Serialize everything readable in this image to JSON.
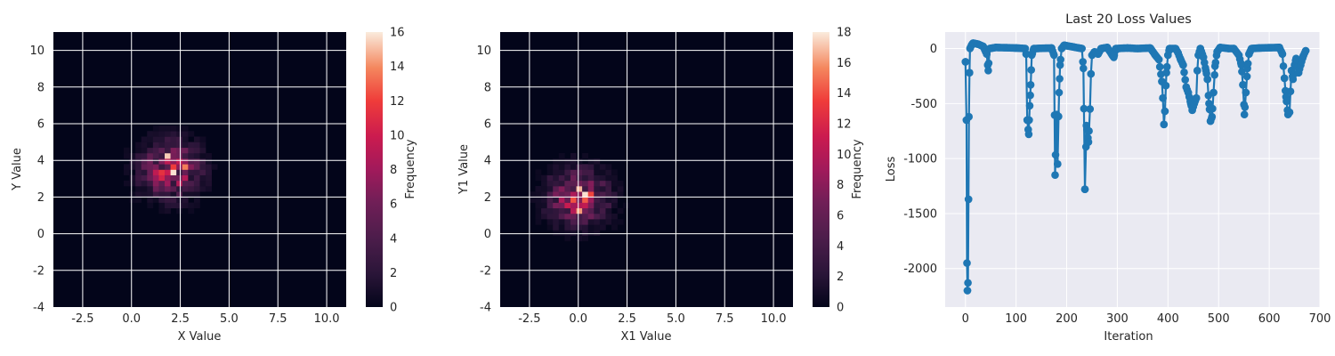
{
  "chart_data": [
    {
      "type": "heatmap",
      "title": "",
      "xlabel": "X Value",
      "ylabel": "Y Value",
      "xlim": [
        -4,
        11
      ],
      "ylim": [
        -4,
        11
      ],
      "x_ticks": [
        "-2.5",
        "0.0",
        "2.5",
        "5.0",
        "7.5",
        "10.0"
      ],
      "y_ticks": [
        "-4",
        "-2",
        "0",
        "2",
        "4",
        "6",
        "8",
        "10"
      ],
      "colorbar": {
        "label": "Frequency",
        "min": 0,
        "max": 16,
        "ticks": [
          "0",
          "2",
          "4",
          "6",
          "8",
          "10",
          "12",
          "14",
          "16"
        ]
      },
      "grid": true,
      "distribution": {
        "center_x": 2.0,
        "center_y": 3.5,
        "spread": 1.0,
        "peak": 16
      }
    },
    {
      "type": "heatmap",
      "title": "",
      "xlabel": "X1 Value",
      "ylabel": "Y1 Value",
      "xlim": [
        -4,
        11
      ],
      "ylim": [
        -4,
        11
      ],
      "x_ticks": [
        "-2.5",
        "0.0",
        "2.5",
        "5.0",
        "7.5",
        "10.0"
      ],
      "y_ticks": [
        "-4",
        "-2",
        "0",
        "2",
        "4",
        "6",
        "8",
        "10"
      ],
      "colorbar": {
        "label": "Frequency",
        "min": 0,
        "max": 18,
        "ticks": [
          "0",
          "2",
          "4",
          "6",
          "8",
          "10",
          "12",
          "14",
          "16",
          "18"
        ]
      },
      "grid": true,
      "distribution": {
        "center_x": 0.0,
        "center_y": 2.0,
        "spread": 1.0,
        "peak": 18
      }
    },
    {
      "type": "line",
      "title": "Last 20 Loss Values",
      "xlabel": "Iteration",
      "ylabel": "Loss",
      "xlim": [
        -40,
        700
      ],
      "ylim": [
        -2350,
        150
      ],
      "x_ticks": [
        "0",
        "100",
        "200",
        "300",
        "400",
        "500",
        "600",
        "700"
      ],
      "y_ticks": [
        "0",
        "-500",
        "-1000",
        "-1500",
        "-2000"
      ],
      "grid": true,
      "color": "#1f77b4",
      "background": "#eaeaf2",
      "x_range": [
        0,
        672
      ],
      "keypoints": [
        [
          0,
          -120
        ],
        [
          2,
          -650
        ],
        [
          3,
          -1950
        ],
        [
          4,
          -2200
        ],
        [
          5,
          -2130
        ],
        [
          6,
          -1370
        ],
        [
          7,
          -620
        ],
        [
          8,
          -220
        ],
        [
          9,
          0
        ],
        [
          12,
          30
        ],
        [
          15,
          50
        ],
        [
          25,
          40
        ],
        [
          35,
          20
        ],
        [
          42,
          -50
        ],
        [
          45,
          -200
        ],
        [
          48,
          0
        ],
        [
          60,
          10
        ],
        [
          100,
          5
        ],
        [
          118,
          0
        ],
        [
          120,
          -50
        ],
        [
          122,
          -650
        ],
        [
          125,
          -780
        ],
        [
          127,
          -520
        ],
        [
          129,
          -330
        ],
        [
          131,
          -60
        ],
        [
          135,
          0
        ],
        [
          170,
          5
        ],
        [
          175,
          -60
        ],
        [
          177,
          -1150
        ],
        [
          180,
          -600
        ],
        [
          182,
          -1050
        ],
        [
          185,
          -400
        ],
        [
          187,
          -150
        ],
        [
          190,
          0
        ],
        [
          195,
          30
        ],
        [
          230,
          0
        ],
        [
          233,
          -180
        ],
        [
          236,
          -1280
        ],
        [
          239,
          -700
        ],
        [
          243,
          -850
        ],
        [
          246,
          -550
        ],
        [
          248,
          -230
        ],
        [
          250,
          -60
        ],
        [
          255,
          -30
        ],
        [
          262,
          -50
        ],
        [
          268,
          0
        ],
        [
          280,
          10
        ],
        [
          290,
          -60
        ],
        [
          293,
          -80
        ],
        [
          297,
          0
        ],
        [
          320,
          5
        ],
        [
          340,
          0
        ],
        [
          365,
          5
        ],
        [
          375,
          -60
        ],
        [
          382,
          -100
        ],
        [
          388,
          -300
        ],
        [
          390,
          -450
        ],
        [
          392,
          -690
        ],
        [
          394,
          -570
        ],
        [
          397,
          -220
        ],
        [
          400,
          -60
        ],
        [
          403,
          0
        ],
        [
          415,
          0
        ],
        [
          420,
          -40
        ],
        [
          425,
          -100
        ],
        [
          430,
          -150
        ],
        [
          436,
          -350
        ],
        [
          440,
          -400
        ],
        [
          445,
          -500
        ],
        [
          448,
          -560
        ],
        [
          452,
          -500
        ],
        [
          456,
          -450
        ],
        [
          458,
          -200
        ],
        [
          460,
          -60
        ],
        [
          464,
          0
        ],
        [
          470,
          -80
        ],
        [
          475,
          -200
        ],
        [
          478,
          -280
        ],
        [
          481,
          -500
        ],
        [
          484,
          -660
        ],
        [
          487,
          -620
        ],
        [
          490,
          -400
        ],
        [
          493,
          -160
        ],
        [
          497,
          -30
        ],
        [
          503,
          10
        ],
        [
          520,
          0
        ],
        [
          530,
          0
        ],
        [
          540,
          -60
        ],
        [
          545,
          -150
        ],
        [
          548,
          -330
        ],
        [
          551,
          -600
        ],
        [
          554,
          -400
        ],
        [
          557,
          -180
        ],
        [
          560,
          -50
        ],
        [
          565,
          0
        ],
        [
          580,
          5
        ],
        [
          620,
          10
        ],
        [
          626,
          -50
        ],
        [
          630,
          -270
        ],
        [
          633,
          -440
        ],
        [
          637,
          -600
        ],
        [
          640,
          -580
        ],
        [
          644,
          -200
        ],
        [
          647,
          -280
        ],
        [
          650,
          -150
        ],
        [
          653,
          -90
        ],
        [
          658,
          -220
        ],
        [
          662,
          -150
        ],
        [
          667,
          -70
        ],
        [
          672,
          -20
        ]
      ]
    }
  ]
}
